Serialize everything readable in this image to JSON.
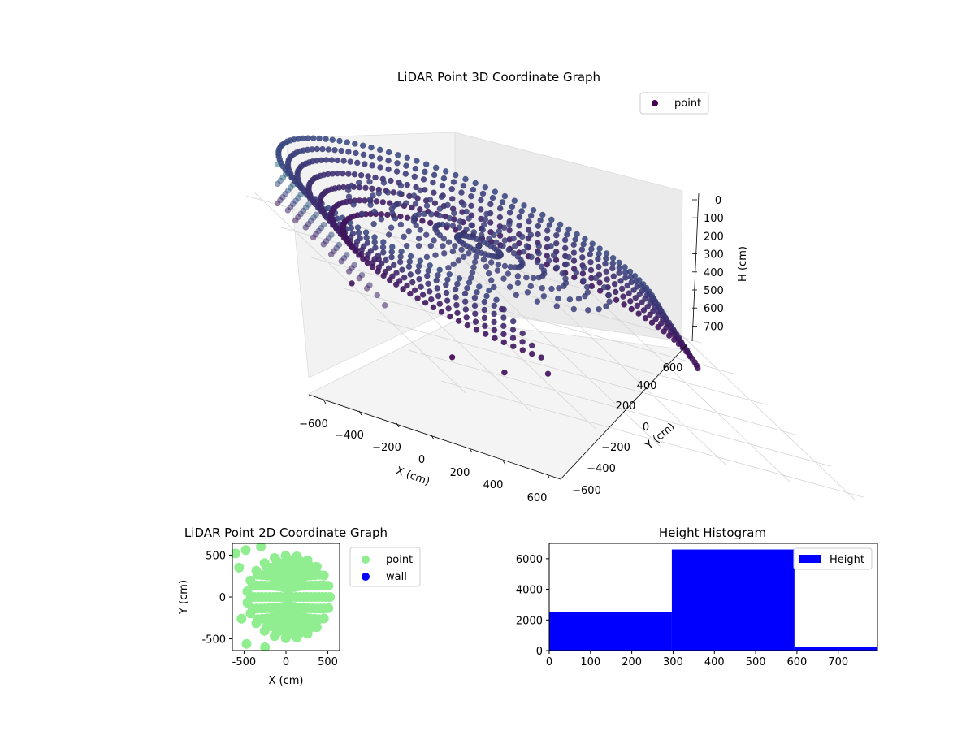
{
  "chart_data": [
    {
      "type": "scatter",
      "title": "LiDAR Point 3D Coordinate Graph",
      "xlabel": "X (cm)",
      "ylabel": "Y (cm)",
      "zlabel": "H (cm)",
      "xlim": [
        -650,
        650
      ],
      "ylim": [
        -650,
        650
      ],
      "zlim": [
        0,
        780
      ],
      "z_inverted": true,
      "xticks": [
        "−600",
        "−400",
        "−200",
        "0",
        "200",
        "400",
        "600"
      ],
      "yticks": [
        "−600",
        "−400",
        "−200",
        "0",
        "200",
        "400",
        "600"
      ],
      "zticks": [
        "0",
        "100",
        "200",
        "300",
        "400",
        "500",
        "600",
        "700"
      ],
      "grid": true,
      "legend": {
        "placement": "top-right",
        "entries": [
          {
            "name": "point",
            "color": "#440154"
          }
        ]
      },
      "colormap": "viridis",
      "series": [
        {
          "name": "point",
          "description_of_shape": "dense curved wall band at radius ~500 cm for heights 300-600, vertical posts near x≈-600",
          "rings": [
            {
              "radius": 520,
              "h": 320
            },
            {
              "radius": 515,
              "h": 360
            },
            {
              "radius": 510,
              "h": 400
            },
            {
              "radius": 505,
              "h": 450
            },
            {
              "radius": 500,
              "h": 500
            },
            {
              "radius": 495,
              "h": 550
            },
            {
              "radius": 490,
              "h": 600
            }
          ],
          "posts_h_range": [
            0,
            560
          ]
        }
      ]
    },
    {
      "type": "scatter",
      "title": "LiDAR Point 2D Coordinate Graph",
      "xlabel": "X (cm)",
      "ylabel": "Y (cm)",
      "xlim": [
        -640,
        640
      ],
      "ylim": [
        -640,
        640
      ],
      "xticks": [
        -500,
        0,
        500
      ],
      "yticks": [
        -500,
        0,
        500
      ],
      "legend": {
        "placement": "outside-right",
        "entries": [
          {
            "name": "point",
            "color": "#90ee90"
          },
          {
            "name": "wall",
            "color": "#0000ff"
          }
        ]
      },
      "series": [
        {
          "name": "point",
          "color": "#90ee90",
          "disc_radius": 520
        },
        {
          "name": "wall",
          "color": "#0000ff",
          "values": []
        }
      ]
    },
    {
      "type": "bar",
      "title": "Height Histogram",
      "xlim": [
        0,
        795
      ],
      "ylim": [
        0,
        7000
      ],
      "xticks": [
        0,
        100,
        200,
        300,
        400,
        500,
        600,
        700
      ],
      "yticks": [
        0,
        2000,
        4000,
        6000
      ],
      "legend": {
        "placement": "top-right",
        "entries": [
          {
            "name": "Height",
            "color": "#0000ff"
          }
        ]
      },
      "series": [
        {
          "name": "Height",
          "color": "#0000ff",
          "bins": [
            {
              "x0": 0,
              "x1": 297,
              "count": 2500
            },
            {
              "x0": 297,
              "x1": 594,
              "count": 6600
            },
            {
              "x0": 594,
              "x1": 795,
              "count": 250
            }
          ]
        }
      ]
    }
  ]
}
